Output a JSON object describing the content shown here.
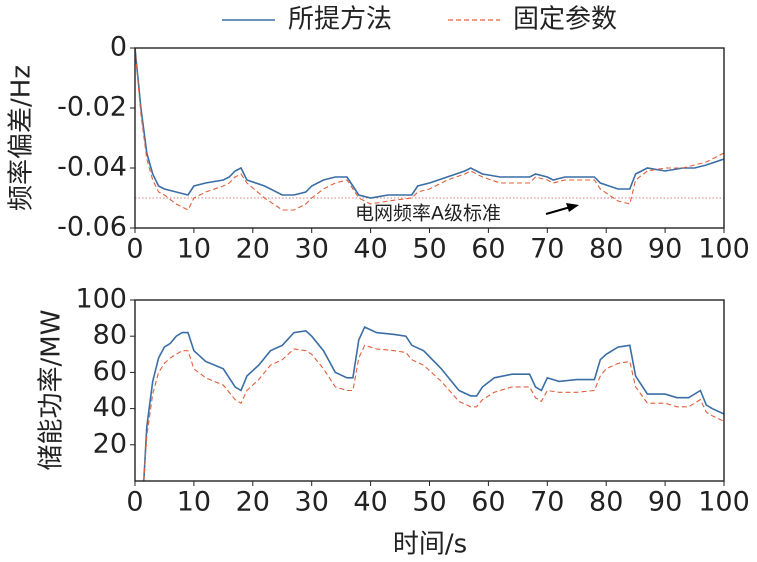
{
  "chart_data": [
    {
      "type": "line",
      "y_label": "频率偏差/Hz",
      "x": [
        0,
        1,
        2,
        3,
        4,
        5,
        7,
        9,
        10,
        12,
        15,
        16,
        17,
        18,
        19,
        22,
        25,
        27,
        29,
        30,
        32,
        34,
        36,
        37,
        38,
        40,
        43,
        47,
        48,
        50,
        53,
        56,
        57,
        59,
        62,
        67,
        68,
        70,
        71,
        73,
        78,
        79,
        82,
        84,
        85,
        87,
        90,
        93,
        95,
        97,
        100
      ],
      "series": [
        {
          "name": "所提方法",
          "color": "#3a6ea5",
          "dash": false,
          "values": [
            0,
            -0.02,
            -0.035,
            -0.042,
            -0.046,
            -0.047,
            -0.048,
            -0.049,
            -0.046,
            -0.045,
            -0.044,
            -0.043,
            -0.041,
            -0.04,
            -0.044,
            -0.046,
            -0.049,
            -0.049,
            -0.048,
            -0.046,
            -0.044,
            -0.043,
            -0.043,
            -0.046,
            -0.049,
            -0.05,
            -0.049,
            -0.049,
            -0.046,
            -0.045,
            -0.043,
            -0.041,
            -0.04,
            -0.042,
            -0.043,
            -0.043,
            -0.042,
            -0.043,
            -0.044,
            -0.043,
            -0.043,
            -0.045,
            -0.047,
            -0.047,
            -0.042,
            -0.04,
            -0.041,
            -0.04,
            -0.04,
            -0.039,
            -0.037
          ]
        },
        {
          "name": "固定参数",
          "color": "#e0603a",
          "dash": true,
          "values": [
            0,
            -0.022,
            -0.037,
            -0.044,
            -0.048,
            -0.049,
            -0.052,
            -0.054,
            -0.05,
            -0.048,
            -0.046,
            -0.045,
            -0.043,
            -0.042,
            -0.045,
            -0.05,
            -0.054,
            -0.054,
            -0.052,
            -0.05,
            -0.047,
            -0.045,
            -0.044,
            -0.047,
            -0.05,
            -0.052,
            -0.051,
            -0.05,
            -0.048,
            -0.047,
            -0.044,
            -0.042,
            -0.041,
            -0.043,
            -0.045,
            -0.045,
            -0.043,
            -0.044,
            -0.045,
            -0.044,
            -0.044,
            -0.047,
            -0.051,
            -0.052,
            -0.044,
            -0.041,
            -0.04,
            -0.04,
            -0.039,
            -0.038,
            -0.035
          ]
        }
      ],
      "reference_line": {
        "value": -0.05,
        "label": "电网频率A级标准",
        "color": "#e08080"
      },
      "xlim": [
        0,
        100
      ],
      "xticks": [
        0,
        10,
        20,
        30,
        40,
        50,
        60,
        70,
        80,
        90,
        100
      ],
      "ylim": [
        -0.06,
        0
      ],
      "yticks": [
        -0.06,
        -0.04,
        -0.02,
        0
      ]
    },
    {
      "type": "line",
      "x_label": "时间/s",
      "y_label": "储能功率/MW",
      "x": [
        1.5,
        2,
        3,
        4,
        5,
        6,
        7,
        8,
        9,
        10,
        12,
        15,
        17,
        18,
        19,
        21,
        23,
        25,
        27,
        29,
        30,
        32,
        34,
        36,
        37,
        38,
        39,
        41,
        44,
        46,
        47,
        49,
        52,
        55,
        57,
        58,
        59,
        61,
        64,
        67,
        68,
        69,
        70,
        72,
        75,
        78,
        79,
        80,
        82,
        84,
        85,
        87,
        90,
        92,
        94,
        96,
        97,
        98,
        100
      ],
      "series": [
        {
          "color": "#3a6ea5",
          "dash": false,
          "values": [
            0,
            30,
            55,
            68,
            74,
            76,
            80,
            82,
            82,
            72,
            66,
            62,
            52,
            50,
            58,
            64,
            72,
            75,
            82,
            83,
            80,
            72,
            60,
            57,
            57,
            78,
            85,
            82,
            81,
            80,
            75,
            72,
            62,
            50,
            47,
            47,
            52,
            57,
            59,
            59,
            52,
            50,
            57,
            55,
            56,
            56,
            67,
            70,
            74,
            75,
            58,
            48,
            48,
            46,
            46,
            50,
            42,
            40,
            37
          ]
        },
        {
          "color": "#e0603a",
          "dash": true,
          "values": [
            0,
            25,
            48,
            60,
            65,
            68,
            70,
            72,
            72,
            62,
            57,
            53,
            45,
            43,
            50,
            56,
            64,
            67,
            73,
            72,
            70,
            62,
            52,
            50,
            50,
            68,
            75,
            73,
            72,
            71,
            67,
            64,
            55,
            44,
            41,
            41,
            45,
            49,
            52,
            52,
            46,
            44,
            50,
            49,
            49,
            50,
            58,
            62,
            65,
            66,
            52,
            43,
            43,
            41,
            41,
            45,
            38,
            36,
            33
          ]
        }
      ],
      "xlim": [
        0,
        100
      ],
      "xticks": [
        0,
        10,
        20,
        30,
        40,
        50,
        60,
        70,
        80,
        90,
        100
      ],
      "ylim": [
        0,
        100
      ],
      "yticks": [
        20,
        40,
        60,
        80,
        100
      ]
    }
  ]
}
